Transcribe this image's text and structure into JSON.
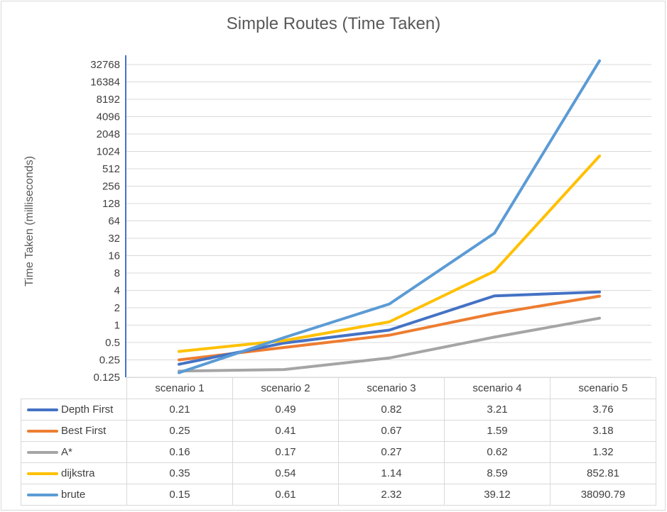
{
  "chart_data": {
    "type": "line",
    "title": "Simple Routes (Time Taken)",
    "xlabel": "",
    "ylabel": "Time Taken (milliseconds)",
    "yscale": "log2",
    "ylim": [
      0.125,
      32768
    ],
    "yticks": [
      "0.125",
      "0.25",
      "0.5",
      "1",
      "2",
      "4",
      "8",
      "16",
      "32",
      "64",
      "128",
      "256",
      "512",
      "1024",
      "2048",
      "4096",
      "8192",
      "16384",
      "32768"
    ],
    "grid": true,
    "legend": "data table below chart",
    "categories": [
      "scenario 1",
      "scenario 2",
      "scenario 3",
      "scenario 4",
      "scenario 5"
    ],
    "series": [
      {
        "name": "Depth First",
        "color": "#4472c4",
        "values": [
          0.21,
          0.49,
          0.82,
          3.21,
          3.76
        ],
        "labels": [
          "0.21",
          "0.49",
          "0.82",
          "3.21",
          "3.76"
        ]
      },
      {
        "name": "Best First",
        "color": "#ed7d31",
        "values": [
          0.25,
          0.41,
          0.67,
          1.59,
          3.18
        ],
        "labels": [
          "0.25",
          "0.41",
          "0.67",
          "1.59",
          "3.18"
        ]
      },
      {
        "name": "A*",
        "color": "#a5a5a5",
        "values": [
          0.16,
          0.17,
          0.27,
          0.62,
          1.32
        ],
        "labels": [
          "0.16",
          "0.17",
          "0.27",
          "0.62",
          "1.32"
        ]
      },
      {
        "name": "dijkstra",
        "color": "#ffc000",
        "values": [
          0.35,
          0.54,
          1.14,
          8.59,
          852.81
        ],
        "labels": [
          "0.35",
          "0.54",
          "1.14",
          "8.59",
          "852.81"
        ]
      },
      {
        "name": "brute",
        "color": "#5b9bd5",
        "values": [
          0.15,
          0.61,
          2.32,
          39.12,
          38090.79
        ],
        "labels": [
          "0.15",
          "0.61",
          "2.32",
          "39.12",
          "38090.79"
        ]
      }
    ]
  }
}
